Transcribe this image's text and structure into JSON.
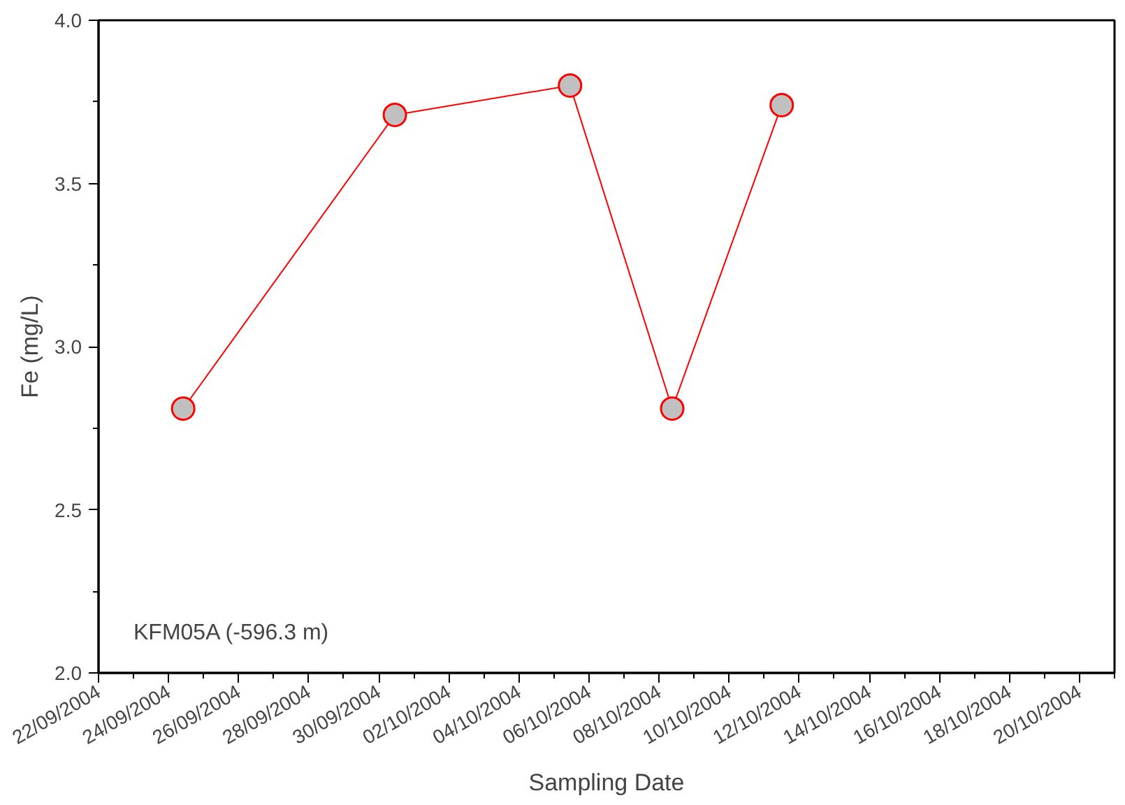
{
  "chart_data": {
    "type": "line",
    "xlabel": "Sampling Date",
    "ylabel": "Fe (mg/L)",
    "x": [
      "2004-09-24T10:00",
      "2004-09-30T11:00",
      "2004-10-05T11:00",
      "2004-10-08T09:00",
      "2004-10-11T12:00"
    ],
    "series": [
      {
        "color": "#ff0000",
        "values": [
          2.81,
          3.71,
          3.8,
          2.81,
          3.74
        ]
      }
    ],
    "marker": "circle",
    "line_style": "solid",
    "grid": false,
    "xlim": [
      "2004-09-22",
      "2004-10-21"
    ],
    "xticks": [
      {
        "value": "2004-09-22",
        "label": "22/09/2004"
      },
      {
        "value": "2004-09-24",
        "label": "24/09/2004"
      },
      {
        "value": "2004-09-26",
        "label": "26/09/2004"
      },
      {
        "value": "2004-09-28",
        "label": "28/09/2004"
      },
      {
        "value": "2004-09-30",
        "label": "30/09/2004"
      },
      {
        "value": "2004-10-02",
        "label": "02/10/2004"
      },
      {
        "value": "2004-10-04",
        "label": "04/10/2004"
      },
      {
        "value": "2004-10-06",
        "label": "06/10/2004"
      },
      {
        "value": "2004-10-08",
        "label": "08/10/2004"
      },
      {
        "value": "2004-10-10",
        "label": "10/10/2004"
      },
      {
        "value": "2004-10-12",
        "label": "12/10/2004"
      },
      {
        "value": "2004-10-14",
        "label": "14/10/2004"
      },
      {
        "value": "2004-10-16",
        "label": "16/10/2004"
      },
      {
        "value": "2004-10-18",
        "label": "18/10/2004"
      },
      {
        "value": "2004-10-20",
        "label": "20/10/2004"
      }
    ],
    "ylim": [
      2.0,
      4.0
    ],
    "yticks": [
      {
        "value": 2.0,
        "label": "2.0"
      },
      {
        "value": 2.5,
        "label": "2.5"
      },
      {
        "value": 3.0,
        "label": "3.0"
      },
      {
        "value": 3.5,
        "label": "3.5"
      },
      {
        "value": 4.0,
        "label": "4.0"
      }
    ],
    "annotations": [
      "KFM05A (-596.3 m)"
    ]
  }
}
